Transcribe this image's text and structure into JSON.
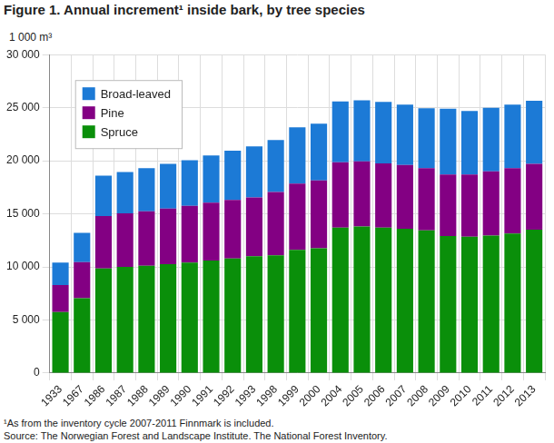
{
  "chart_data": {
    "type": "bar",
    "title": "Figure 1. Annual increment¹ inside bark, by tree species",
    "y_label": "1 000 m³",
    "notes": [
      "¹As from the inventory cycle 2007-2011 Finnmark is included.",
      "Source: The Norwegian Forest and Landscape Institute. The National Forest Inventory."
    ],
    "categories": [
      "1933",
      "1967",
      "1986",
      "1987",
      "1988",
      "1989",
      "1990",
      "1991",
      "1992",
      "1993",
      "1998",
      "1999",
      "2000",
      "2004",
      "2005",
      "2006",
      "2007",
      "2008",
      "2009",
      "2010",
      "2011",
      "2012",
      "2013"
    ],
    "series": [
      {
        "name": "Spruce",
        "color": "#0a8f0a",
        "values": [
          5750,
          7050,
          9850,
          10000,
          10100,
          10250,
          10400,
          10600,
          10800,
          11000,
          11100,
          11600,
          11750,
          13700,
          13800,
          13700,
          13600,
          13450,
          12900,
          12850,
          12950,
          13150,
          13500
        ]
      },
      {
        "name": "Pine",
        "color": "#830083",
        "values": [
          2550,
          3400,
          4950,
          5050,
          5150,
          5250,
          5350,
          5450,
          5500,
          5550,
          5950,
          6250,
          6400,
          6150,
          6150,
          6050,
          6000,
          5850,
          5800,
          5850,
          6050,
          6150,
          6200
        ]
      },
      {
        "name": "Broad-leaved",
        "color": "#1c7ad6",
        "values": [
          2100,
          2750,
          3800,
          3900,
          4050,
          4200,
          4300,
          4450,
          4650,
          4800,
          4900,
          5300,
          5350,
          5750,
          5750,
          5800,
          5700,
          5650,
          6200,
          6000,
          6000,
          6000,
          5950
        ]
      }
    ],
    "stacked": true,
    "ylim": [
      0,
      30000
    ],
    "yticks": [
      0,
      {
        "value": 5000,
        "label": "5 000"
      },
      {
        "value": 10000,
        "label": "10 000"
      },
      {
        "value": 15000,
        "label": "15 000"
      },
      {
        "value": 20000,
        "label": "20 000"
      },
      {
        "value": 25000,
        "label": "25 000"
      },
      {
        "value": 30000,
        "label": "30 000"
      }
    ],
    "grid": true,
    "legend": "upper left"
  }
}
